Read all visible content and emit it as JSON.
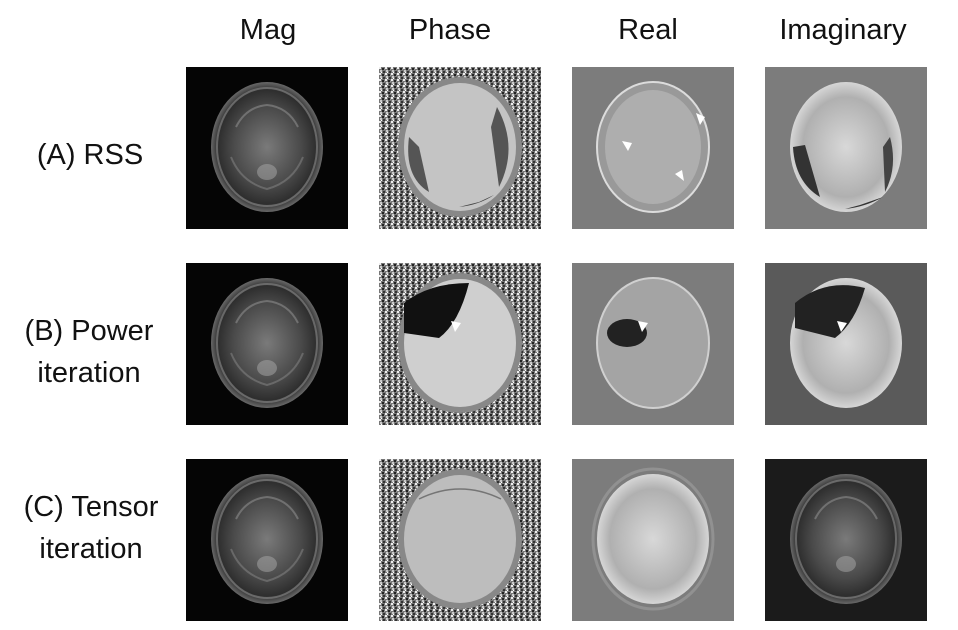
{
  "columns": [
    "Mag",
    "Phase",
    "Real",
    "Imaginary"
  ],
  "rows": [
    {
      "label_lines": [
        "(A) RSS"
      ]
    },
    {
      "label_lines": [
        "(B) Power",
        "iteration"
      ]
    },
    {
      "label_lines": [
        "(C) Tensor",
        "iteration"
      ]
    }
  ]
}
